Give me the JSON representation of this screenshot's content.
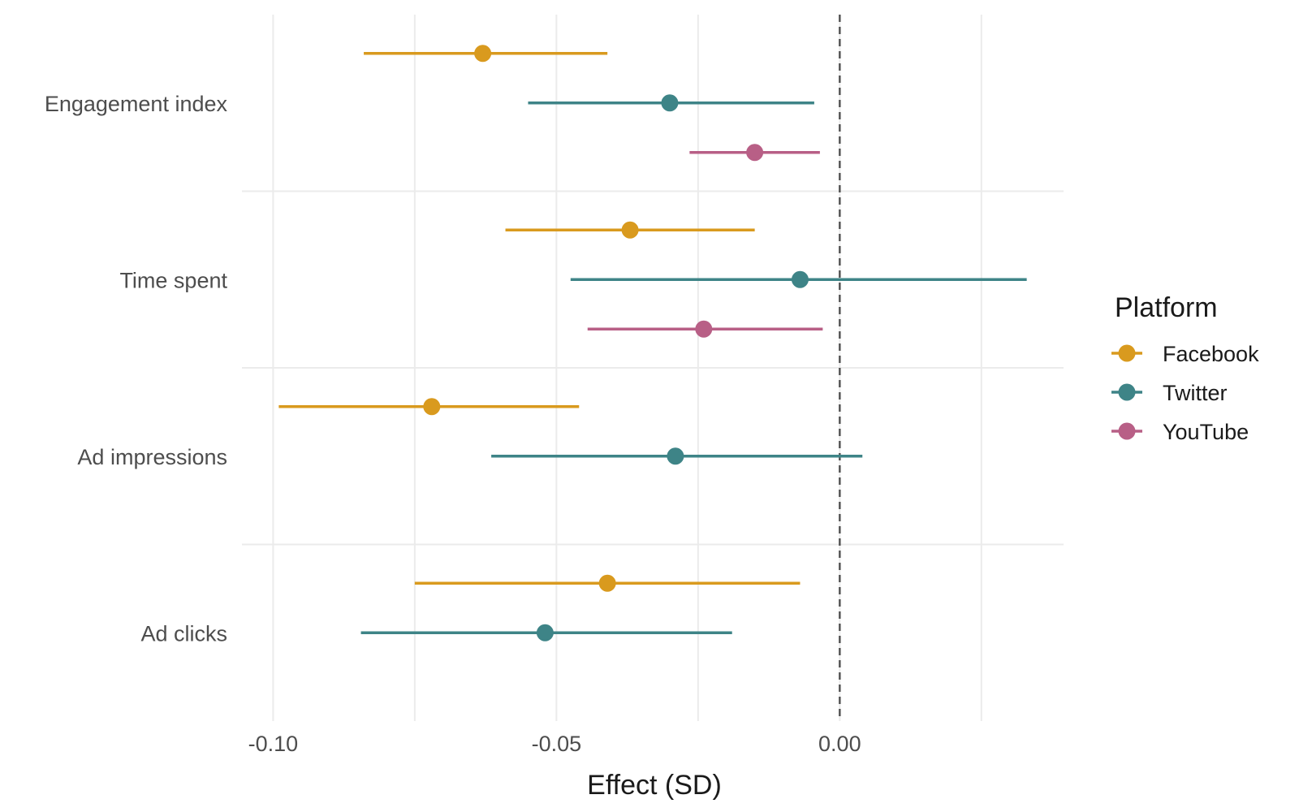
{
  "chart_data": {
    "type": "scatter",
    "subtype": "dot-and-whisker",
    "title": "",
    "xlabel": "Effect (SD)",
    "ylabel": "",
    "xlim": [
      -0.1055,
      0.0395
    ],
    "x_ticks": [
      -0.1,
      -0.05,
      0.0
    ],
    "x_tick_labels": [
      "-0.10",
      "-0.05",
      "0.00"
    ],
    "reference_line": 0.0,
    "grid": true,
    "categories": [
      "Engagement index",
      "Time spent",
      "Ad impressions",
      "Ad clicks"
    ],
    "legend": {
      "title": "Platform",
      "position": "right"
    },
    "series": [
      {
        "name": "Facebook",
        "color": "#D99A1E",
        "points": [
          {
            "category": "Engagement index",
            "estimate": -0.063,
            "low": -0.084,
            "high": -0.041
          },
          {
            "category": "Time spent",
            "estimate": -0.037,
            "low": -0.059,
            "high": -0.015
          },
          {
            "category": "Ad impressions",
            "estimate": -0.072,
            "low": -0.099,
            "high": -0.046
          },
          {
            "category": "Ad clicks",
            "estimate": -0.041,
            "low": -0.075,
            "high": -0.007
          }
        ]
      },
      {
        "name": "Twitter",
        "color": "#3E8487",
        "points": [
          {
            "category": "Engagement index",
            "estimate": -0.03,
            "low": -0.055,
            "high": -0.0045
          },
          {
            "category": "Time spent",
            "estimate": -0.007,
            "low": -0.0475,
            "high": 0.033
          },
          {
            "category": "Ad impressions",
            "estimate": -0.029,
            "low": -0.0615,
            "high": 0.004
          },
          {
            "category": "Ad clicks",
            "estimate": -0.052,
            "low": -0.0845,
            "high": -0.019
          }
        ]
      },
      {
        "name": "YouTube",
        "color": "#B85F86",
        "points": [
          {
            "category": "Engagement index",
            "estimate": -0.015,
            "low": -0.0265,
            "high": -0.0035
          },
          {
            "category": "Time spent",
            "estimate": -0.024,
            "low": -0.0445,
            "high": -0.003
          }
        ]
      }
    ]
  }
}
